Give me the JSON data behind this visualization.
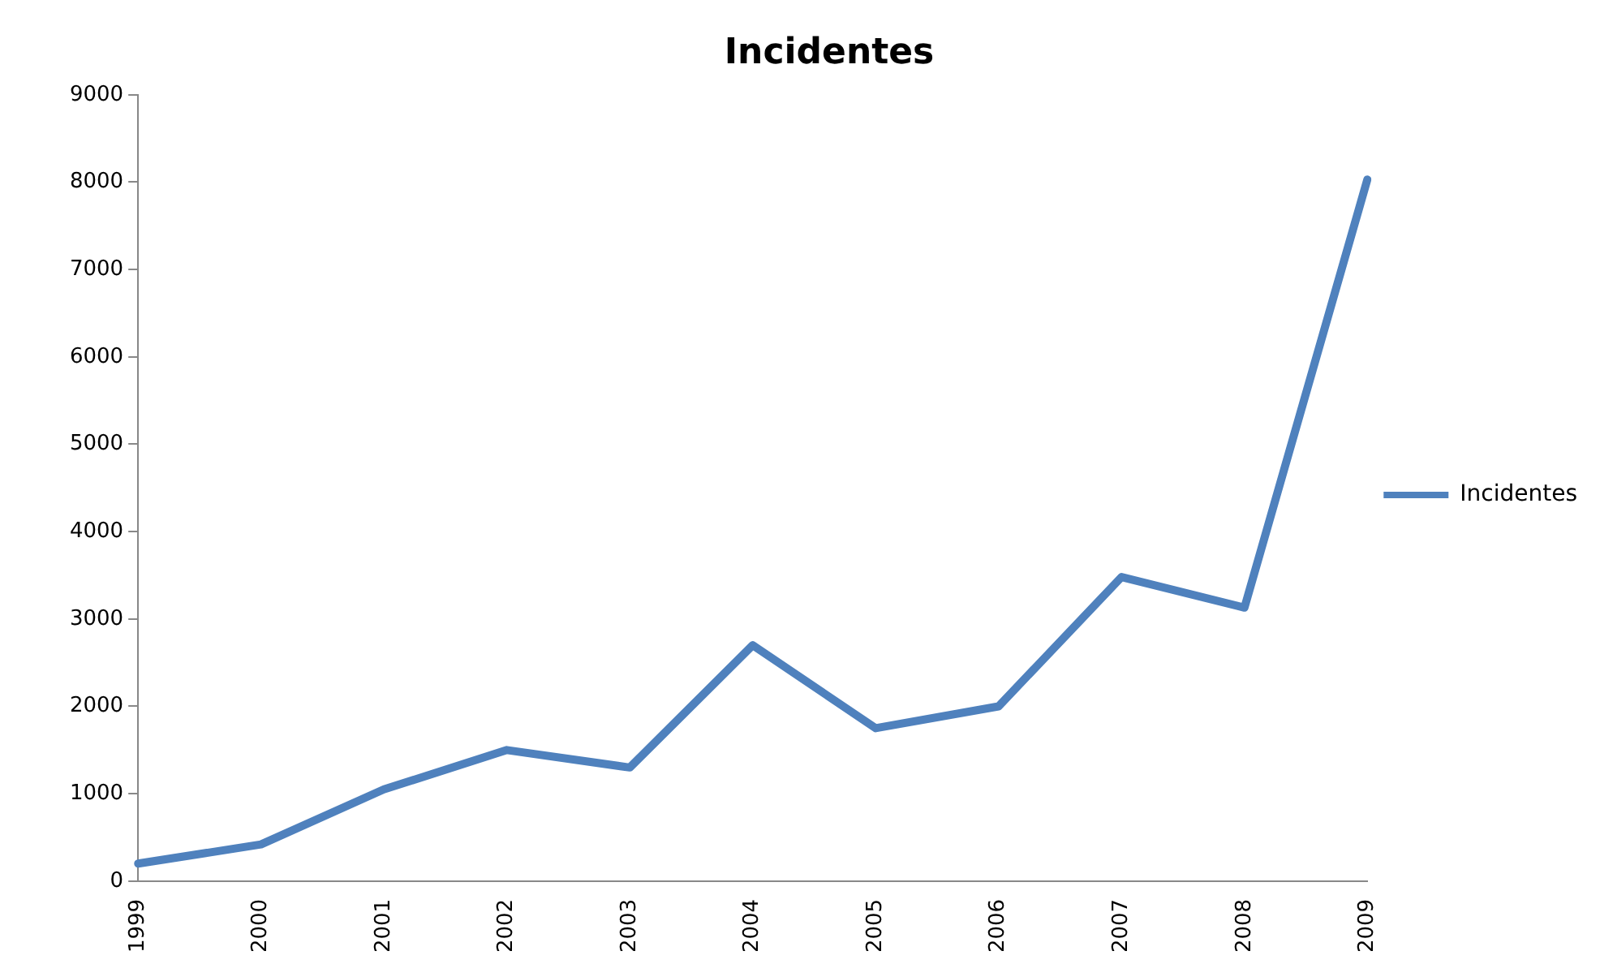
{
  "chart_data": {
    "type": "line",
    "title": "Incidentes",
    "categories": [
      "1999",
      "2000",
      "2001",
      "2002",
      "2003",
      "2004",
      "2005",
      "2006",
      "2007",
      "2008",
      "2009"
    ],
    "series": [
      {
        "name": "Incidentes",
        "color": "#4f81bd",
        "values": [
          200,
          420,
          1050,
          1500,
          1300,
          2700,
          1750,
          2000,
          3480,
          3130,
          8030
        ]
      }
    ],
    "ylim": [
      0,
      9000
    ],
    "yticks": [
      0,
      1000,
      2000,
      3000,
      4000,
      5000,
      6000,
      7000,
      8000,
      9000
    ],
    "grid": false,
    "legend": "right",
    "marker": "none",
    "line_style": "solid"
  }
}
